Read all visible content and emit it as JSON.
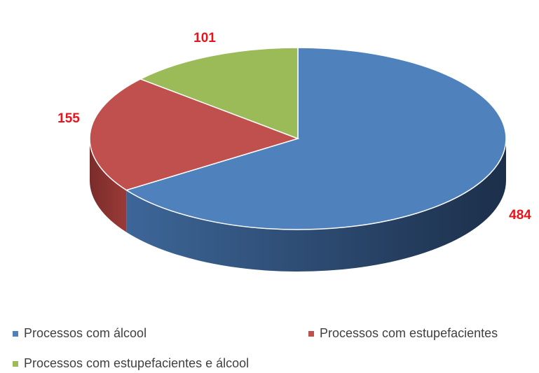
{
  "chart_data": {
    "type": "pie",
    "categories": [
      "Processos com álcool",
      "Processos com estupefacientes",
      "Processos com estupefacientes e álcool"
    ],
    "values": [
      484,
      155,
      101
    ],
    "colors": [
      "#4f81bd",
      "#c0504d",
      "#9bbb59"
    ],
    "legend": "bottom"
  }
}
